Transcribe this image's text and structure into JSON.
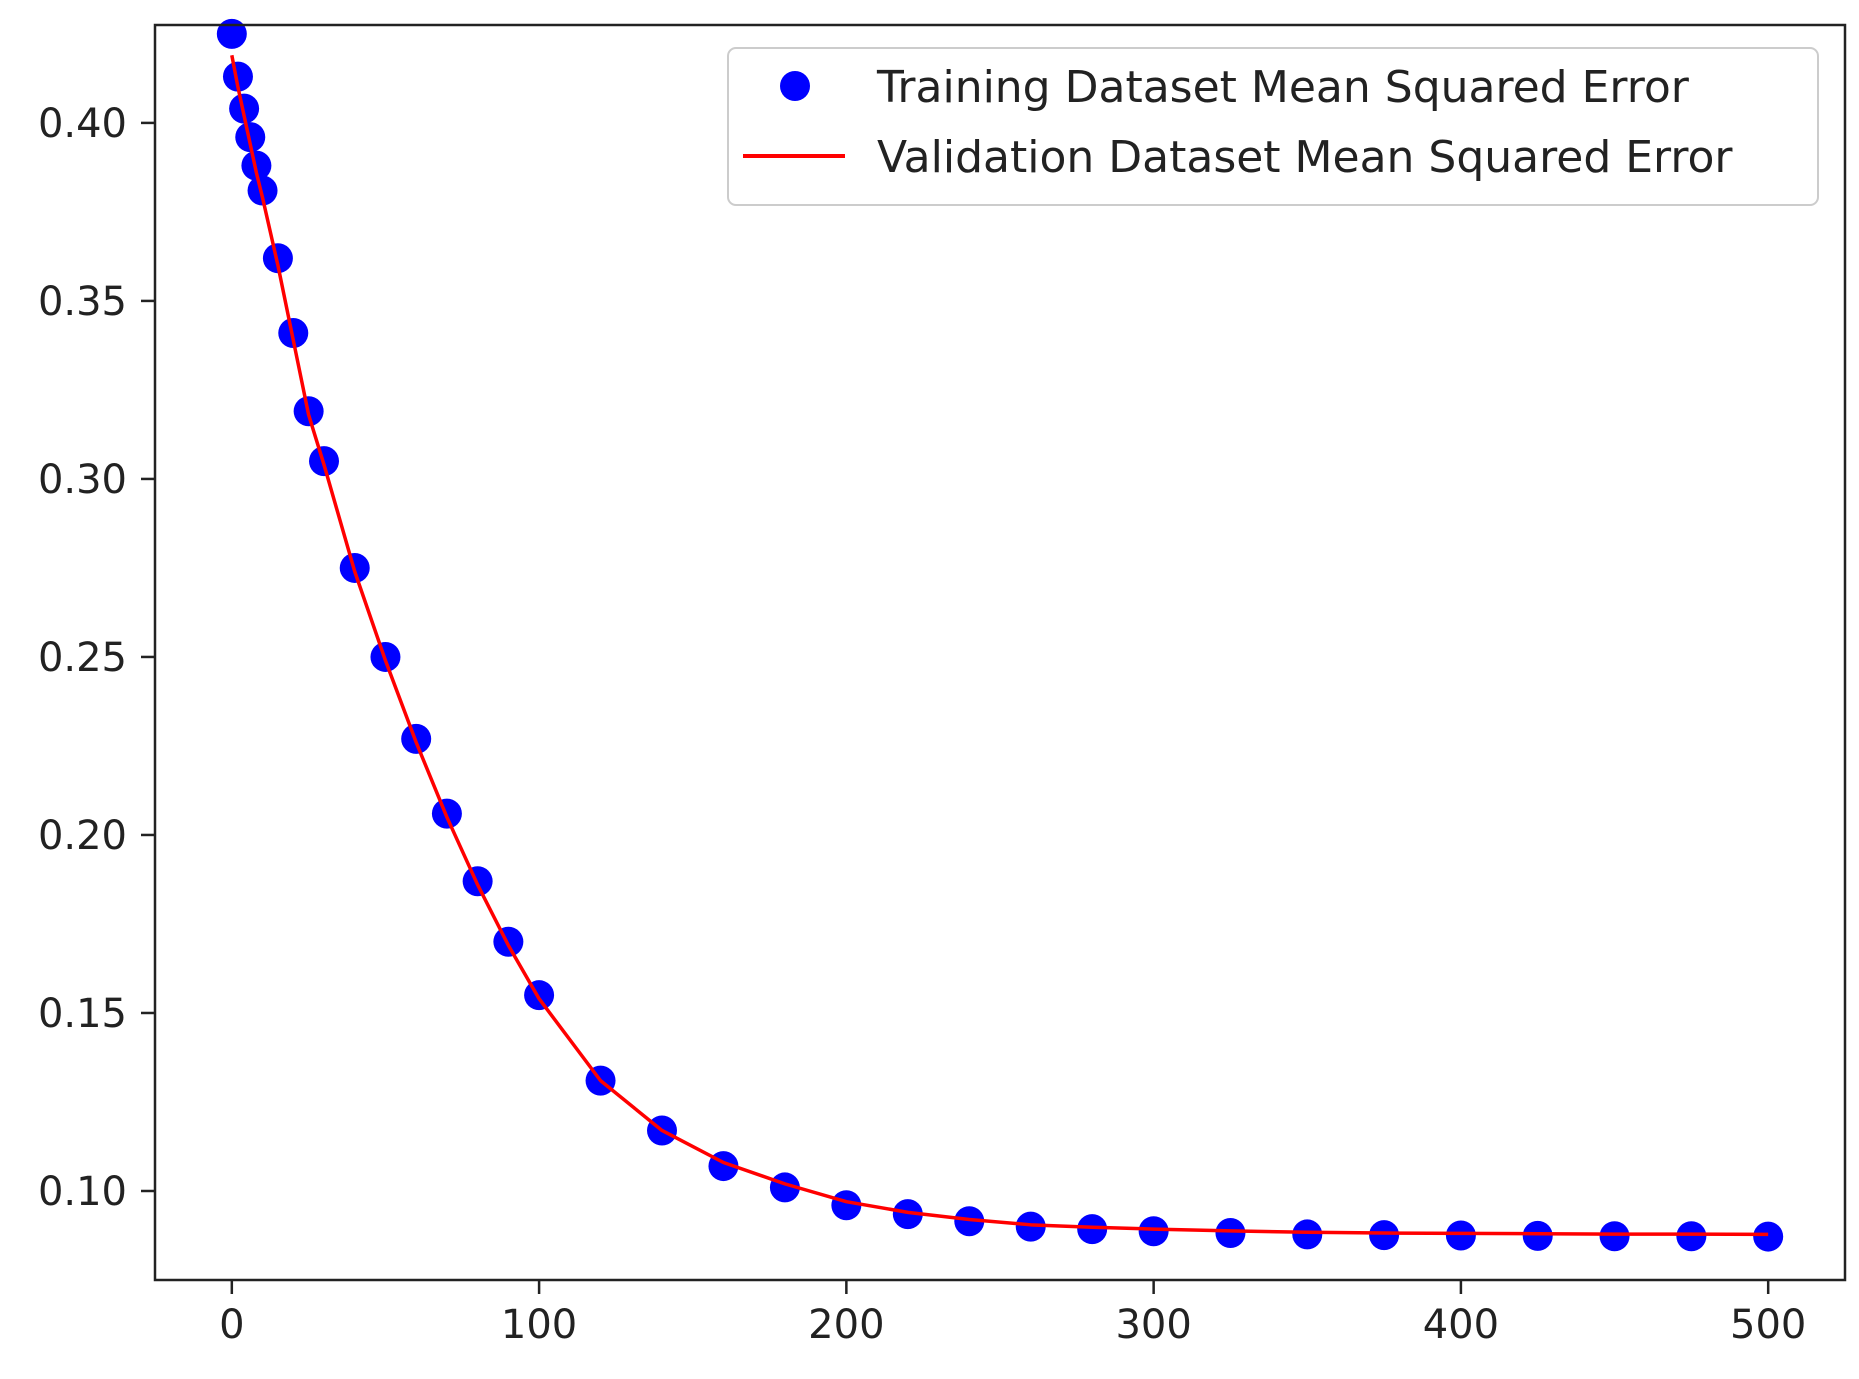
{
  "chart_data": {
    "type": "scatter",
    "title": "",
    "xlabel": "",
    "ylabel": "",
    "xlim": [
      -25,
      525
    ],
    "ylim": [
      0.075,
      0.4275
    ],
    "x_ticks": [
      0,
      100,
      200,
      300,
      400,
      500
    ],
    "x_tick_labels": [
      "0",
      "100",
      "200",
      "300",
      "400",
      "500"
    ],
    "y_ticks": [
      0.1,
      0.15,
      0.2,
      0.25,
      0.3,
      0.35,
      0.4
    ],
    "y_tick_labels": [
      "0.10",
      "0.15",
      "0.20",
      "0.25",
      "0.30",
      "0.35",
      "0.40"
    ],
    "grid": false,
    "legend_position": "top-right",
    "series": [
      {
        "name": "Training Dataset Mean Squared Error",
        "kind": "scatter",
        "color": "#0000ff",
        "x": [
          0,
          2,
          4,
          6,
          8,
          10,
          15,
          20,
          25,
          30,
          40,
          50,
          60,
          70,
          80,
          90,
          100,
          120,
          140,
          160,
          180,
          200,
          220,
          240,
          260,
          280,
          300,
          325,
          350,
          375,
          400,
          425,
          450,
          475,
          500
        ],
        "y": [
          0.425,
          0.413,
          0.404,
          0.396,
          0.388,
          0.381,
          0.362,
          0.341,
          0.319,
          0.305,
          0.275,
          0.25,
          0.227,
          0.206,
          0.187,
          0.17,
          0.155,
          0.131,
          0.117,
          0.107,
          0.101,
          0.096,
          0.0935,
          0.0915,
          0.09,
          0.0893,
          0.0887,
          0.0882,
          0.0878,
          0.0876,
          0.0875,
          0.0874,
          0.0873,
          0.0873,
          0.0872
        ]
      },
      {
        "name": "Validation Dataset Mean Squared Error",
        "kind": "line",
        "color": "#ff0000",
        "x": [
          0,
          2,
          4,
          6,
          8,
          10,
          15,
          20,
          25,
          30,
          40,
          50,
          60,
          70,
          80,
          90,
          100,
          120,
          140,
          160,
          180,
          200,
          220,
          240,
          260,
          280,
          300,
          325,
          350,
          375,
          400,
          425,
          450,
          475,
          500
        ],
        "y": [
          0.419,
          0.41,
          0.402,
          0.394,
          0.386,
          0.379,
          0.36,
          0.339,
          0.318,
          0.304,
          0.274,
          0.249,
          0.226,
          0.205,
          0.186,
          0.169,
          0.154,
          0.131,
          0.117,
          0.108,
          0.102,
          0.097,
          0.094,
          0.092,
          0.0905,
          0.0898,
          0.0893,
          0.0888,
          0.0884,
          0.0882,
          0.0881,
          0.088,
          0.0879,
          0.0879,
          0.0878
        ]
      }
    ]
  }
}
